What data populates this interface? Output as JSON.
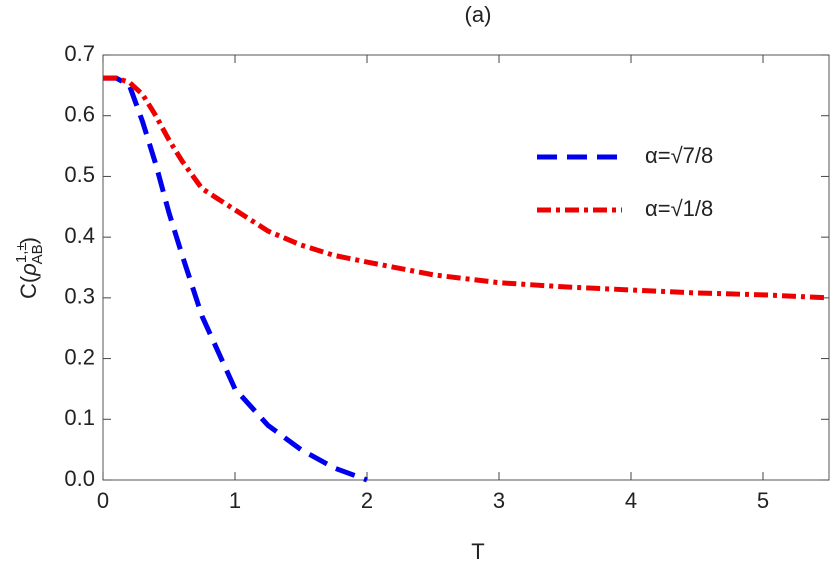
{
  "chart_data": {
    "type": "line",
    "title": "(a)",
    "x_label": "T",
    "y_label": {
      "lead": "C(",
      "symbol": "ρ",
      "sup": "1,±",
      "sub": "AB",
      "tail": ")"
    },
    "x": [
      0,
      0.1,
      0.2,
      0.3,
      0.4,
      0.5,
      0.6,
      0.75,
      1,
      1.25,
      1.5,
      1.75,
      2,
      2.5,
      3,
      3.5,
      4,
      4.5,
      5,
      5.5
    ],
    "series": [
      {
        "name": "α=√7/8",
        "color": "#0000ee",
        "dash": "dashed",
        "values": [
          0.662,
          0.662,
          0.65,
          0.59,
          0.52,
          0.44,
          0.37,
          0.27,
          0.15,
          0.09,
          0.05,
          0.02,
          0,
          null,
          null,
          null,
          null,
          null,
          null,
          null
        ]
      },
      {
        "name": "α=√1/8",
        "color": "#ee0000",
        "dash": "dashdot",
        "values": [
          0.662,
          0.662,
          0.655,
          0.635,
          0.6,
          0.56,
          0.525,
          0.48,
          0.445,
          0.41,
          0.387,
          0.37,
          0.359,
          0.338,
          0.325,
          0.318,
          0.313,
          0.308,
          0.305,
          0.3
        ]
      }
    ],
    "xlim": [
      0,
      5.5
    ],
    "ylim": [
      0,
      0.7
    ],
    "xticks": [
      0,
      1,
      2,
      3,
      4,
      5
    ],
    "yticks": [
      {
        "value": 0,
        "label": "0.0"
      },
      0.1,
      0.2,
      0.3,
      0.4,
      0.5,
      0.6,
      0.7
    ]
  }
}
